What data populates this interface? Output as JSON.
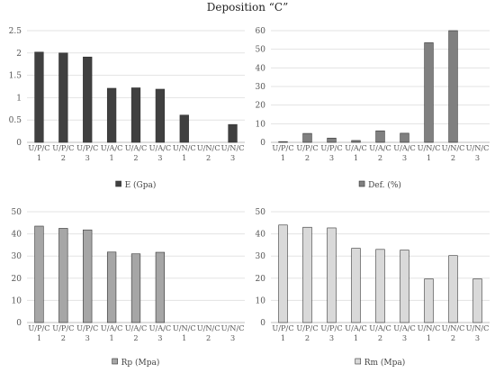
{
  "title": "Deposition “C”",
  "chart_data": [
    {
      "type": "bar",
      "categories": [
        [
          "U/P/C",
          "1"
        ],
        [
          "U/P/C",
          "2"
        ],
        [
          "U/P/C",
          "3"
        ],
        [
          "U/A/C",
          "1"
        ],
        [
          "U/A/C",
          "2"
        ],
        [
          "U/A/C",
          "3"
        ],
        [
          "U/N/C",
          "1"
        ],
        [
          "U/N/C",
          "2"
        ],
        [
          "U/N/C",
          "3"
        ]
      ],
      "series": [
        {
          "name": "E (Gpa)",
          "values": [
            2.02,
            2.0,
            1.91,
            1.21,
            1.22,
            1.19,
            0.61,
            null,
            0.4
          ],
          "color": "#404040"
        }
      ],
      "yticks": [
        "0",
        "0.5",
        "1",
        "1.5",
        "2",
        "2.5"
      ],
      "ylim": [
        0,
        2.5
      ],
      "grid": true,
      "legend": "bottom"
    },
    {
      "type": "bar",
      "categories": [
        [
          "U/P/C",
          "1"
        ],
        [
          "U/P/C",
          "2"
        ],
        [
          "U/P/C",
          "3"
        ],
        [
          "U/A/C",
          "1"
        ],
        [
          "U/A/C",
          "2"
        ],
        [
          "U/A/C",
          "3"
        ],
        [
          "U/N/C",
          "1"
        ],
        [
          "U/N/C",
          "2"
        ],
        [
          "U/N/C",
          "3"
        ]
      ],
      "series": [
        {
          "name": "Def. (%)",
          "values": [
            0.4,
            4.8,
            2.3,
            1.0,
            6.2,
            4.9,
            53.5,
            60,
            null
          ],
          "color": "#808080"
        }
      ],
      "yticks": [
        "0",
        "10",
        "20",
        "30",
        "40",
        "50",
        "60"
      ],
      "ylim": [
        0,
        60
      ],
      "grid": true,
      "legend": "bottom"
    },
    {
      "type": "bar",
      "categories": [
        [
          "U/P/C",
          "1"
        ],
        [
          "U/P/C",
          "2"
        ],
        [
          "U/P/C",
          "3"
        ],
        [
          "U/A/C",
          "1"
        ],
        [
          "U/A/C",
          "2"
        ],
        [
          "U/A/C",
          "3"
        ],
        [
          "U/N/C",
          "1"
        ],
        [
          "U/N/C",
          "2"
        ],
        [
          "U/N/C",
          "3"
        ]
      ],
      "series": [
        {
          "name": "Rp (Mpa)",
          "values": [
            43.5,
            42.5,
            41.8,
            31.8,
            31.0,
            31.7,
            null,
            null,
            null
          ],
          "color": "#a6a6a6"
        }
      ],
      "yticks": [
        "0",
        "10",
        "20",
        "30",
        "40",
        "50"
      ],
      "ylim": [
        0,
        50
      ],
      "grid": true,
      "legend": "bottom"
    },
    {
      "type": "bar",
      "categories": [
        [
          "U/P/C",
          "1"
        ],
        [
          "U/P/C",
          "2"
        ],
        [
          "U/P/C",
          "3"
        ],
        [
          "U/A/C",
          "1"
        ],
        [
          "U/A/C",
          "2"
        ],
        [
          "U/A/C",
          "3"
        ],
        [
          "U/N/C",
          "1"
        ],
        [
          "U/N/C",
          "2"
        ],
        [
          "U/N/C",
          "3"
        ]
      ],
      "series": [
        {
          "name": "Rm (Mpa)",
          "values": [
            44.0,
            43.0,
            42.7,
            33.5,
            33.0,
            32.7,
            19.7,
            30.2,
            19.7
          ],
          "color": "#d9d9d9"
        }
      ],
      "yticks": [
        "0",
        "10",
        "20",
        "30",
        "40",
        "50"
      ],
      "ylim": [
        0,
        50
      ],
      "grid": true,
      "legend": "bottom"
    }
  ]
}
